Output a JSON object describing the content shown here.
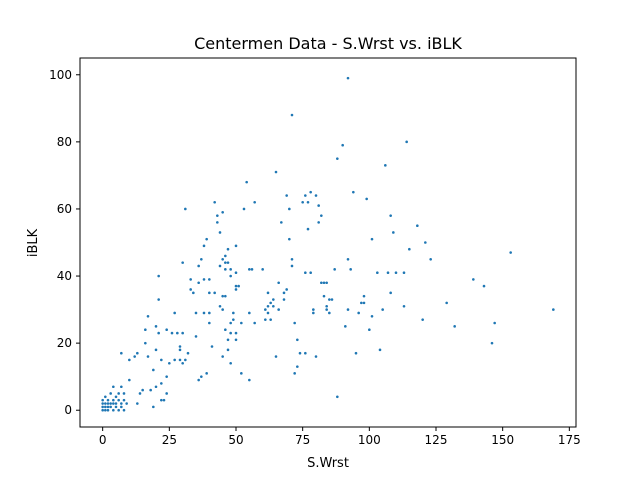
{
  "chart_data": {
    "type": "scatter",
    "title": "Centermen Data - S.Wrst vs. iBLK",
    "xlabel": "S.Wrst",
    "ylabel": "iBLK",
    "xlim": [
      -8.5,
      177.5
    ],
    "ylim": [
      -5,
      105
    ],
    "xticks": [
      0,
      25,
      50,
      75,
      100,
      125,
      150,
      175
    ],
    "yticks": [
      0,
      20,
      40,
      60,
      80,
      100
    ],
    "grid": false,
    "legend": "none",
    "marker_color": "#1f77b4",
    "points": [
      [
        0,
        0
      ],
      [
        0,
        1
      ],
      [
        0,
        2
      ],
      [
        0,
        3
      ],
      [
        1,
        0
      ],
      [
        1,
        1
      ],
      [
        1,
        2
      ],
      [
        1,
        4
      ],
      [
        2,
        0
      ],
      [
        2,
        1
      ],
      [
        2,
        2
      ],
      [
        2,
        3
      ],
      [
        3,
        1
      ],
      [
        3,
        2
      ],
      [
        3,
        5
      ],
      [
        4,
        0
      ],
      [
        4,
        2
      ],
      [
        4,
        3
      ],
      [
        4,
        7
      ],
      [
        5,
        1
      ],
      [
        5,
        2
      ],
      [
        5,
        4
      ],
      [
        6,
        0
      ],
      [
        6,
        3
      ],
      [
        6,
        5
      ],
      [
        7,
        1
      ],
      [
        7,
        2
      ],
      [
        7,
        7
      ],
      [
        7,
        17
      ],
      [
        8,
        0
      ],
      [
        8,
        3
      ],
      [
        8,
        5
      ],
      [
        9,
        2
      ],
      [
        10,
        9
      ],
      [
        10,
        15
      ],
      [
        12,
        16
      ],
      [
        13,
        2
      ],
      [
        13,
        17
      ],
      [
        14,
        5
      ],
      [
        15,
        6
      ],
      [
        16,
        20
      ],
      [
        16,
        24
      ],
      [
        17,
        16
      ],
      [
        17,
        28
      ],
      [
        18,
        6
      ],
      [
        19,
        1
      ],
      [
        19,
        12
      ],
      [
        20,
        7
      ],
      [
        20,
        18
      ],
      [
        20,
        25
      ],
      [
        21,
        23
      ],
      [
        21,
        33
      ],
      [
        21,
        40
      ],
      [
        22,
        3
      ],
      [
        22,
        8
      ],
      [
        22,
        15
      ],
      [
        23,
        3
      ],
      [
        24,
        5
      ],
      [
        24,
        10
      ],
      [
        24,
        24
      ],
      [
        25,
        14
      ],
      [
        26,
        23
      ],
      [
        27,
        15
      ],
      [
        27,
        29
      ],
      [
        28,
        23
      ],
      [
        29,
        15
      ],
      [
        29,
        18
      ],
      [
        29,
        19
      ],
      [
        30,
        14
      ],
      [
        30,
        23
      ],
      [
        30,
        44
      ],
      [
        31,
        15
      ],
      [
        31,
        60
      ],
      [
        32,
        17
      ],
      [
        33,
        36
      ],
      [
        33,
        39
      ],
      [
        34,
        35
      ],
      [
        35,
        22
      ],
      [
        35,
        29
      ],
      [
        36,
        9
      ],
      [
        36,
        38
      ],
      [
        36,
        43
      ],
      [
        37,
        10
      ],
      [
        37,
        45
      ],
      [
        38,
        29
      ],
      [
        38,
        39
      ],
      [
        38,
        49
      ],
      [
        39,
        11
      ],
      [
        39,
        51
      ],
      [
        40,
        26
      ],
      [
        40,
        29
      ],
      [
        40,
        35
      ],
      [
        40,
        39
      ],
      [
        41,
        19
      ],
      [
        42,
        35
      ],
      [
        42,
        62
      ],
      [
        43,
        56
      ],
      [
        43,
        58
      ],
      [
        44,
        31
      ],
      [
        44,
        43
      ],
      [
        44,
        53
      ],
      [
        45,
        16
      ],
      [
        45,
        30
      ],
      [
        45,
        34
      ],
      [
        45,
        45
      ],
      [
        45,
        59
      ],
      [
        46,
        24
      ],
      [
        46,
        34
      ],
      [
        46,
        42
      ],
      [
        46,
        44
      ],
      [
        46,
        46
      ],
      [
        47,
        18
      ],
      [
        47,
        21
      ],
      [
        47,
        44
      ],
      [
        47,
        48
      ],
      [
        48,
        14
      ],
      [
        48,
        23
      ],
      [
        48,
        26
      ],
      [
        48,
        40
      ],
      [
        48,
        42
      ],
      [
        49,
        27
      ],
      [
        49,
        29
      ],
      [
        50,
        21
      ],
      [
        50,
        23
      ],
      [
        50,
        36
      ],
      [
        50,
        37
      ],
      [
        50,
        41
      ],
      [
        50,
        49
      ],
      [
        51,
        37
      ],
      [
        52,
        11
      ],
      [
        52,
        26
      ],
      [
        53,
        60
      ],
      [
        54,
        68
      ],
      [
        55,
        9
      ],
      [
        55,
        29
      ],
      [
        55,
        42
      ],
      [
        56,
        42
      ],
      [
        57,
        26
      ],
      [
        57,
        62
      ],
      [
        60,
        42
      ],
      [
        61,
        27
      ],
      [
        61,
        30
      ],
      [
        62,
        29
      ],
      [
        62,
        31
      ],
      [
        62,
        35
      ],
      [
        63,
        27
      ],
      [
        63,
        32
      ],
      [
        64,
        31
      ],
      [
        64,
        33
      ],
      [
        65,
        16
      ],
      [
        65,
        71
      ],
      [
        66,
        30
      ],
      [
        66,
        38
      ],
      [
        67,
        56
      ],
      [
        68,
        33
      ],
      [
        68,
        35
      ],
      [
        69,
        36
      ],
      [
        69,
        64
      ],
      [
        70,
        51
      ],
      [
        70,
        60
      ],
      [
        71,
        43
      ],
      [
        71,
        45
      ],
      [
        71,
        88
      ],
      [
        72,
        11
      ],
      [
        72,
        26
      ],
      [
        73,
        13
      ],
      [
        73,
        21
      ],
      [
        74,
        17
      ],
      [
        75,
        62
      ],
      [
        76,
        17
      ],
      [
        76,
        41
      ],
      [
        76,
        64
      ],
      [
        77,
        54
      ],
      [
        77,
        62
      ],
      [
        78,
        41
      ],
      [
        78,
        65
      ],
      [
        79,
        29
      ],
      [
        79,
        30
      ],
      [
        80,
        16
      ],
      [
        80,
        64
      ],
      [
        81,
        56
      ],
      [
        81,
        61
      ],
      [
        82,
        58
      ],
      [
        82,
        38
      ],
      [
        83,
        34
      ],
      [
        83,
        38
      ],
      [
        84,
        30
      ],
      [
        84,
        31
      ],
      [
        84,
        38
      ],
      [
        85,
        29
      ],
      [
        85,
        33
      ],
      [
        86,
        33
      ],
      [
        87,
        42
      ],
      [
        88,
        4
      ],
      [
        88,
        75
      ],
      [
        90,
        79
      ],
      [
        91,
        25
      ],
      [
        92,
        30
      ],
      [
        92,
        45
      ],
      [
        93,
        42
      ],
      [
        94,
        65
      ],
      [
        95,
        17
      ],
      [
        96,
        29
      ],
      [
        97,
        32
      ],
      [
        98,
        32
      ],
      [
        98,
        34
      ],
      [
        99,
        63
      ],
      [
        100,
        24
      ],
      [
        101,
        51
      ],
      [
        101,
        28
      ],
      [
        103,
        41
      ],
      [
        104,
        18
      ],
      [
        105,
        30
      ],
      [
        106,
        73
      ],
      [
        107,
        41
      ],
      [
        108,
        58
      ],
      [
        108,
        35
      ],
      [
        109,
        53
      ],
      [
        110,
        41
      ],
      [
        113,
        41
      ],
      [
        113,
        31
      ],
      [
        114,
        80
      ],
      [
        115,
        48
      ],
      [
        118,
        55
      ],
      [
        120,
        27
      ],
      [
        121,
        50
      ],
      [
        123,
        45
      ],
      [
        129,
        32
      ],
      [
        132,
        25
      ],
      [
        139,
        39
      ],
      [
        143,
        37
      ],
      [
        146,
        20
      ],
      [
        147,
        26
      ],
      [
        153,
        47
      ],
      [
        169,
        30
      ],
      [
        92,
        99
      ]
    ]
  }
}
